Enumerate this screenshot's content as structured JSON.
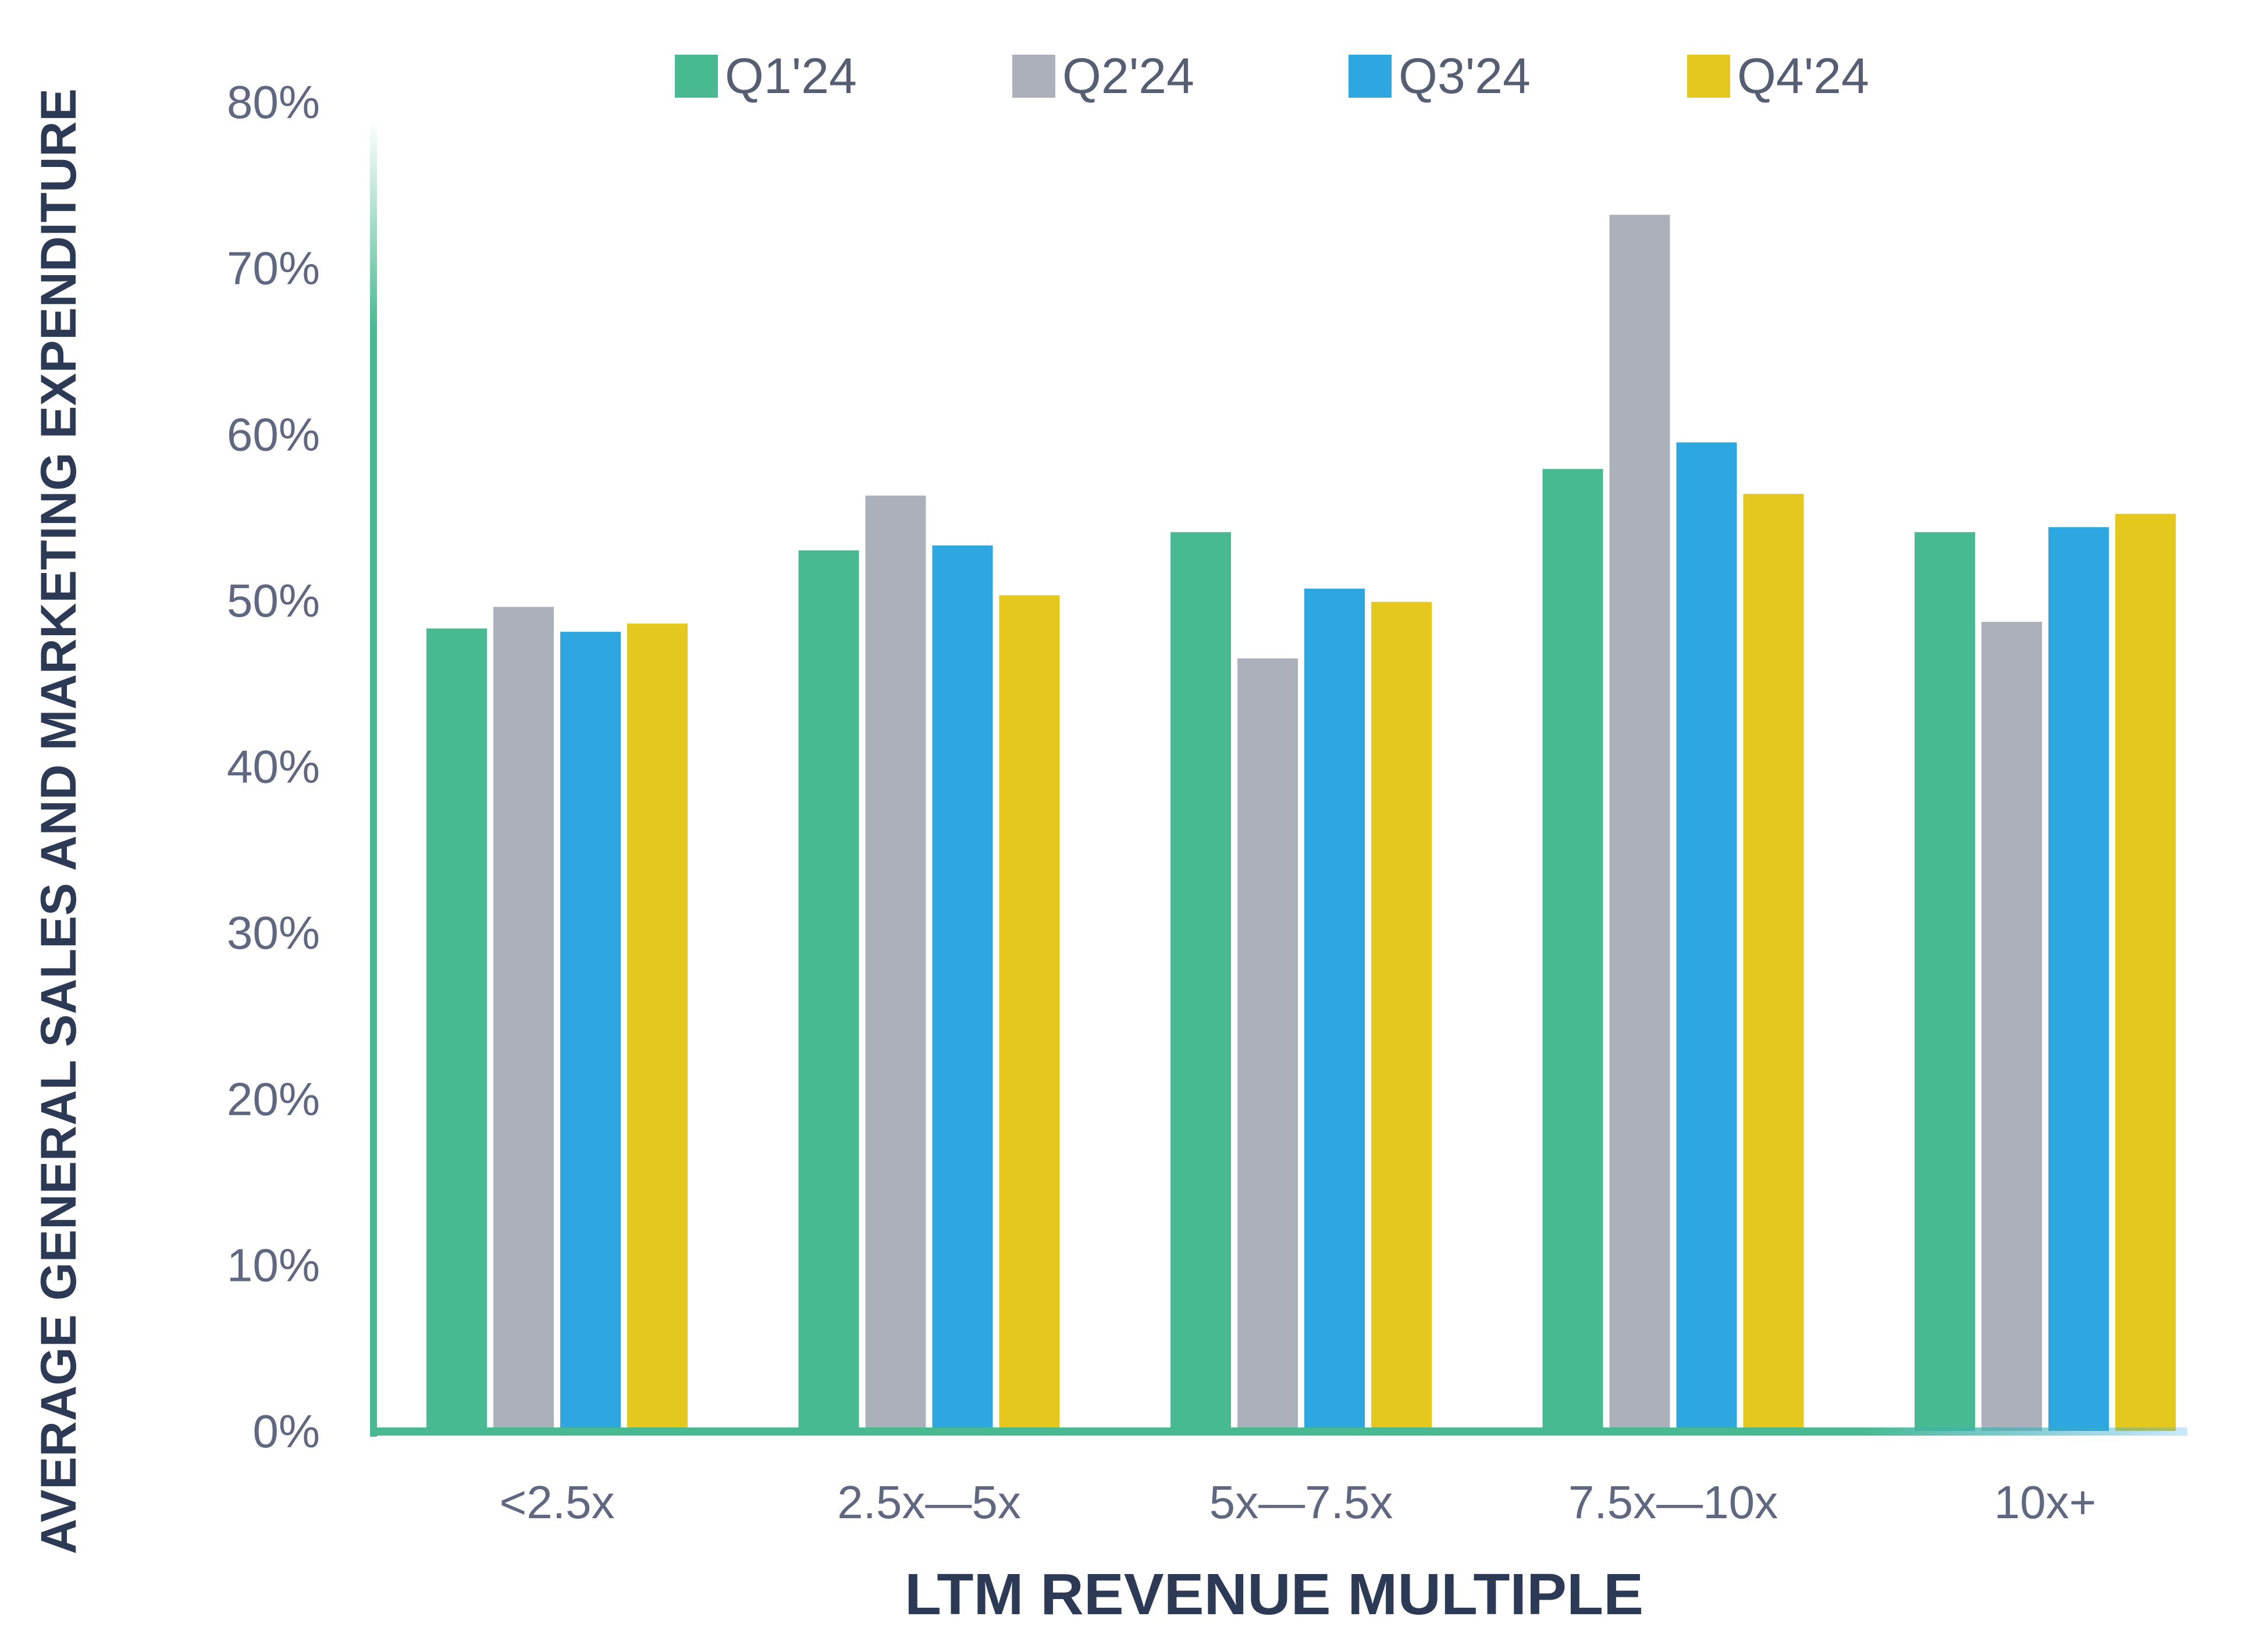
{
  "chart_data": {
    "type": "bar",
    "title": "",
    "xlabel": "LTM REVENUE MULTIPLE",
    "ylabel": "AVERAGE GENERAL SALES AND MARKETING EXPENDITURE",
    "ylim": [
      0,
      80
    ],
    "yticks": [
      0,
      10,
      20,
      30,
      40,
      50,
      60,
      70,
      80
    ],
    "ytick_labels": [
      "0%",
      "10%",
      "20%",
      "30%",
      "40%",
      "50%",
      "60%",
      "70%",
      "80%"
    ],
    "grid": false,
    "legend_position": "top",
    "categories": [
      "<2.5x",
      "2.5x—5x",
      "5x—7.5x",
      "7.5x—10x",
      "10x+"
    ],
    "series": [
      {
        "name": "Q1'24",
        "color": "#48b990",
        "values": [
          48.3,
          53.0,
          54.1,
          57.9,
          54.1
        ]
      },
      {
        "name": "Q2'24",
        "color": "#acb0ba",
        "values": [
          49.6,
          56.3,
          46.5,
          73.2,
          48.7
        ]
      },
      {
        "name": "Q3'24",
        "color": "#2ea7e0",
        "values": [
          48.1,
          53.3,
          50.7,
          59.5,
          54.4
        ]
      },
      {
        "name": "Q4'24",
        "color": "#e5c81e",
        "values": [
          48.6,
          50.3,
          49.9,
          56.4,
          55.2
        ]
      }
    ],
    "axis_color": "#48b990"
  }
}
